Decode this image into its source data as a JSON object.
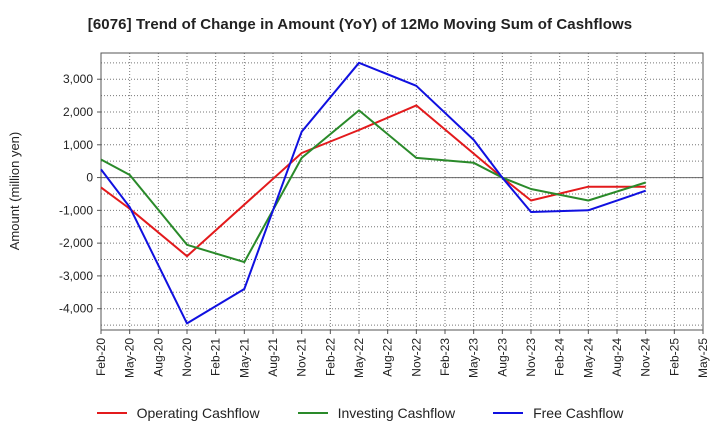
{
  "chart_data": {
    "type": "line",
    "title": "[6076]  Trend of Change in Amount (YoY) of 12Mo Moving Sum of Cashflows",
    "xlabel": "",
    "ylabel": "Amount (million yen)",
    "ylim": [
      -4650,
      3800
    ],
    "yticks": [
      -4000,
      -3000,
      -2000,
      -1000,
      0,
      1000,
      2000,
      3000
    ],
    "ytick_labels": [
      "-4,000",
      "-3,000",
      "-2,000",
      "-1,000",
      "0",
      "1,000",
      "2,000",
      "3,000"
    ],
    "categories": [
      "Feb-20",
      "May-20",
      "Aug-20",
      "Nov-20",
      "Feb-21",
      "May-21",
      "Aug-21",
      "Nov-21",
      "Feb-22",
      "May-22",
      "Aug-22",
      "Nov-22",
      "Feb-23",
      "May-23",
      "Aug-23",
      "Nov-23",
      "Feb-24",
      "May-24",
      "Aug-24",
      "Nov-24",
      "Feb-25",
      "May-25"
    ],
    "grid": true,
    "legend_position": "bottom",
    "series": [
      {
        "name": "Operating Cashflow",
        "color": "#e31a1c",
        "values": [
          -300,
          -950,
          null,
          -2400,
          null,
          null,
          null,
          750,
          null,
          1450,
          null,
          2200,
          null,
          null,
          0,
          -700,
          null,
          -280,
          null,
          -280,
          null,
          null
        ]
      },
      {
        "name": "Investing Cashflow",
        "color": "#2a8a2a",
        "values": [
          550,
          80,
          null,
          -2050,
          null,
          -2580,
          null,
          600,
          null,
          2050,
          null,
          600,
          null,
          450,
          0,
          -350,
          null,
          -700,
          null,
          -150,
          null,
          null
        ]
      },
      {
        "name": "Free Cashflow",
        "color": "#1010e0",
        "values": [
          250,
          -900,
          null,
          -4450,
          null,
          -3400,
          null,
          1400,
          null,
          3500,
          null,
          2800,
          null,
          1150,
          0,
          -1050,
          null,
          -1000,
          null,
          -400,
          null,
          null
        ]
      }
    ]
  }
}
